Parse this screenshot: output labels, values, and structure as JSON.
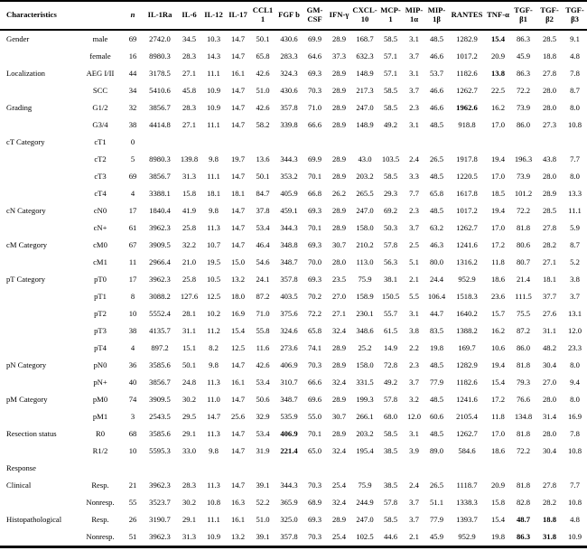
{
  "table": {
    "header": {
      "characteristics": "Characteristics",
      "n": "n",
      "cytokines": [
        "IL-1Ra",
        "IL-6",
        "IL-12",
        "IL-17",
        "CCL11",
        "FGF b",
        "GM-CSF",
        "IFN-γ",
        "CXCL-10",
        "MCP-1",
        "MIP-1α",
        "MIP-1β",
        "RANTES",
        "TNF-α",
        "TGF-β1",
        "TGF-β2",
        "TGF-β3"
      ]
    },
    "rows": [
      {
        "group": "Gender",
        "sub": "male",
        "n": "69",
        "values": [
          "2742.0",
          "34.5",
          "10.3",
          "14.7",
          "50.1",
          "430.6",
          "69.9",
          "28.9",
          "168.7",
          "58.5",
          "3.1",
          "48.5",
          "1282.9",
          "15.4",
          "86.3",
          "28.5",
          "9.1"
        ],
        "bold": [
          13
        ]
      },
      {
        "group": "",
        "sub": "female",
        "n": "16",
        "values": [
          "8980.3",
          "28.3",
          "14.3",
          "14.7",
          "65.8",
          "283.3",
          "64.6",
          "37.3",
          "632.3",
          "57.1",
          "3.7",
          "46.6",
          "1017.2",
          "20.9",
          "45.9",
          "18.8",
          "4.8"
        ],
        "bold": []
      },
      {
        "group": "Localization",
        "sub": "AEG I/II",
        "n": "44",
        "values": [
          "3178.5",
          "27.1",
          "11.1",
          "16.1",
          "42.6",
          "324.3",
          "69.3",
          "28.9",
          "148.9",
          "57.1",
          "3.1",
          "53.7",
          "1182.6",
          "13.8",
          "86.3",
          "27.8",
          "7.8"
        ],
        "bold": [
          13
        ]
      },
      {
        "group": "",
        "sub": "SCC",
        "n": "34",
        "values": [
          "5410.6",
          "45.8",
          "10.9",
          "14.7",
          "51.0",
          "430.6",
          "70.3",
          "28.9",
          "217.3",
          "58.5",
          "3.7",
          "46.6",
          "1262.7",
          "22.5",
          "72.2",
          "28.0",
          "8.7"
        ],
        "bold": []
      },
      {
        "group": "Grading",
        "sub": "G1/2",
        "n": "32",
        "values": [
          "3856.7",
          "28.3",
          "10.9",
          "14.7",
          "42.6",
          "357.8",
          "71.0",
          "28.9",
          "247.0",
          "58.5",
          "2.3",
          "46.6",
          "1962.6",
          "16.2",
          "73.9",
          "28.0",
          "8.0"
        ],
        "bold": [
          12
        ]
      },
      {
        "group": "",
        "sub": "G3/4",
        "n": "38",
        "values": [
          "4414.8",
          "27.1",
          "11.1",
          "14.7",
          "58.2",
          "339.8",
          "66.6",
          "28.9",
          "148.9",
          "49.2",
          "3.1",
          "48.5",
          "918.8",
          "17.0",
          "86.0",
          "27.3",
          "10.8"
        ],
        "bold": []
      },
      {
        "group": "cT Category",
        "sub": "cT1",
        "n": "0",
        "values": [
          "",
          "",
          "",
          "",
          "",
          "",
          "",
          "",
          "",
          "",
          "",
          "",
          "",
          "",
          "",
          "",
          ""
        ],
        "bold": []
      },
      {
        "group": "",
        "sub": "cT2",
        "n": "5",
        "values": [
          "8980.3",
          "139.8",
          "9.8",
          "19.7",
          "13.6",
          "344.3",
          "69.9",
          "28.9",
          "43.0",
          "103.5",
          "2.4",
          "26.5",
          "1917.8",
          "19.4",
          "196.3",
          "43.8",
          "7.7"
        ],
        "bold": []
      },
      {
        "group": "",
        "sub": "cT3",
        "n": "69",
        "values": [
          "3856.7",
          "31.3",
          "11.1",
          "14.7",
          "50.1",
          "353.2",
          "70.1",
          "28.9",
          "203.2",
          "58.5",
          "3.3",
          "48.5",
          "1220.5",
          "17.0",
          "73.9",
          "28.0",
          "8.0"
        ],
        "bold": []
      },
      {
        "group": "",
        "sub": "cT4",
        "n": "4",
        "values": [
          "3388.1",
          "15.8",
          "18.1",
          "18.1",
          "84.7",
          "405.9",
          "66.8",
          "26.2",
          "265.5",
          "29.3",
          "7.7",
          "65.8",
          "1617.8",
          "18.5",
          "101.2",
          "28.9",
          "13.3"
        ],
        "bold": []
      },
      {
        "group": "cN Category",
        "sub": "cN0",
        "n": "17",
        "values": [
          "1840.4",
          "41.9",
          "9.8",
          "14.7",
          "37.8",
          "459.1",
          "69.3",
          "28.9",
          "247.0",
          "69.2",
          "2.3",
          "48.5",
          "1017.2",
          "19.4",
          "72.2",
          "28.5",
          "11.1"
        ],
        "bold": []
      },
      {
        "group": "",
        "sub": "cN+",
        "n": "61",
        "values": [
          "3962.3",
          "25.8",
          "11.3",
          "14.7",
          "53.4",
          "344.3",
          "70.1",
          "28.9",
          "158.0",
          "50.3",
          "3.7",
          "63.2",
          "1262.7",
          "17.0",
          "81.8",
          "27.8",
          "5.9"
        ],
        "bold": []
      },
      {
        "group": "cM Category",
        "sub": "cM0",
        "n": "67",
        "values": [
          "3909.5",
          "32.2",
          "10.7",
          "14.7",
          "46.4",
          "348.8",
          "69.3",
          "30.7",
          "210.2",
          "57.8",
          "2.5",
          "46.3",
          "1241.6",
          "17.2",
          "80.6",
          "28.2",
          "8.7"
        ],
        "bold": []
      },
      {
        "group": "",
        "sub": "cM1",
        "n": "11",
        "values": [
          "2966.4",
          "21.0",
          "19.5",
          "15.0",
          "54.6",
          "348.7",
          "70.0",
          "28.0",
          "113.0",
          "56.3",
          "5.1",
          "80.0",
          "1316.2",
          "11.8",
          "80.7",
          "27.1",
          "5.2"
        ],
        "bold": []
      },
      {
        "group": "pT Category",
        "sub": "pT0",
        "n": "17",
        "values": [
          "3962.3",
          "25.8",
          "10.5",
          "13.2",
          "24.1",
          "357.8",
          "69.3",
          "23.5",
          "75.9",
          "38.1",
          "2.1",
          "24.4",
          "952.9",
          "18.6",
          "21.4",
          "18.1",
          "3.8"
        ],
        "bold": []
      },
      {
        "group": "",
        "sub": "pT1",
        "n": "8",
        "values": [
          "3088.2",
          "127.6",
          "12.5",
          "18.0",
          "87.2",
          "403.5",
          "70.2",
          "27.0",
          "158.9",
          "150.5",
          "5.5",
          "106.4",
          "1518.3",
          "23.6",
          "111.5",
          "37.7",
          "3.7"
        ],
        "bold": []
      },
      {
        "group": "",
        "sub": "pT2",
        "n": "10",
        "values": [
          "5552.4",
          "28.1",
          "10.2",
          "16.9",
          "71.0",
          "375.6",
          "72.2",
          "27.1",
          "230.1",
          "55.7",
          "3.1",
          "44.7",
          "1640.2",
          "15.7",
          "75.5",
          "27.6",
          "13.1"
        ],
        "bold": []
      },
      {
        "group": "",
        "sub": "pT3",
        "n": "38",
        "values": [
          "4135.7",
          "31.1",
          "11.2",
          "15.4",
          "55.8",
          "324.6",
          "65.8",
          "32.4",
          "348.6",
          "61.5",
          "3.8",
          "83.5",
          "1388.2",
          "16.2",
          "87.2",
          "31.1",
          "12.0"
        ],
        "bold": []
      },
      {
        "group": "",
        "sub": "pT4",
        "n": "4",
        "values": [
          "897.2",
          "15.1",
          "8.2",
          "12.5",
          "11.6",
          "273.6",
          "74.1",
          "28.9",
          "25.2",
          "14.9",
          "2.2",
          "19.8",
          "169.7",
          "10.6",
          "86.0",
          "48.2",
          "23.3"
        ],
        "bold": []
      },
      {
        "group": "pN Category",
        "sub": "pN0",
        "n": "36",
        "values": [
          "3585.6",
          "50.1",
          "9.8",
          "14.7",
          "42.6",
          "406.9",
          "70.3",
          "28.9",
          "158.0",
          "72.8",
          "2.3",
          "48.5",
          "1282.9",
          "19.4",
          "81.8",
          "30.4",
          "8.0"
        ],
        "bold": []
      },
      {
        "group": "",
        "sub": "pN+",
        "n": "40",
        "values": [
          "3856.7",
          "24.8",
          "11.3",
          "16.1",
          "53.4",
          "310.7",
          "66.6",
          "32.4",
          "331.5",
          "49.2",
          "3.7",
          "77.9",
          "1182.6",
          "15.4",
          "79.3",
          "27.0",
          "9.4"
        ],
        "bold": []
      },
      {
        "group": "pM Category",
        "sub": "pM0",
        "n": "74",
        "values": [
          "3909.5",
          "30.2",
          "11.0",
          "14.7",
          "50.6",
          "348.7",
          "69.6",
          "28.9",
          "199.3",
          "57.8",
          "3.2",
          "48.5",
          "1241.6",
          "17.2",
          "76.6",
          "28.0",
          "8.0"
        ],
        "bold": []
      },
      {
        "group": "",
        "sub": "pM1",
        "n": "3",
        "values": [
          "2543.5",
          "29.5",
          "14.7",
          "25.6",
          "32.9",
          "535.9",
          "55.0",
          "30.7",
          "266.1",
          "68.0",
          "12.0",
          "60.6",
          "2105.4",
          "11.8",
          "134.8",
          "31.4",
          "16.9"
        ],
        "bold": []
      },
      {
        "group": "Resection status",
        "sub": "R0",
        "n": "68",
        "values": [
          "3585.6",
          "29.1",
          "11.3",
          "14.7",
          "53.4",
          "406.9",
          "70.1",
          "28.9",
          "203.2",
          "58.5",
          "3.1",
          "48.5",
          "1262.7",
          "17.0",
          "81.8",
          "28.0",
          "7.8"
        ],
        "bold": [
          5
        ]
      },
      {
        "group": "",
        "sub": "R1/2",
        "n": "10",
        "values": [
          "5595.3",
          "33.0",
          "9.8",
          "14.7",
          "31.9",
          "221.4",
          "65.0",
          "32.4",
          "195.4",
          "38.5",
          "3.9",
          "89.0",
          "584.6",
          "18.6",
          "72.2",
          "30.4",
          "10.8"
        ],
        "bold": [
          5
        ]
      },
      {
        "group": "Response",
        "sub": "",
        "n": "",
        "values": [
          "",
          "",
          "",
          "",
          "",
          "",
          "",
          "",
          "",
          "",
          "",
          "",
          "",
          "",
          "",
          "",
          ""
        ],
        "bold": []
      },
      {
        "group": "Clinical",
        "sub": "Resp.",
        "n": "21",
        "values": [
          "3962.3",
          "28.3",
          "11.3",
          "14.7",
          "39.1",
          "344.3",
          "70.3",
          "25.4",
          "75.9",
          "38.5",
          "2.4",
          "26.5",
          "1118.7",
          "20.9",
          "81.8",
          "27.8",
          "7.7"
        ],
        "bold": []
      },
      {
        "group": "",
        "sub": "Nonresp.",
        "n": "55",
        "values": [
          "3523.7",
          "30.2",
          "10.8",
          "16.3",
          "52.2",
          "365.9",
          "68.9",
          "32.4",
          "244.9",
          "57.8",
          "3.7",
          "51.1",
          "1338.3",
          "15.8",
          "82.8",
          "28.2",
          "10.8"
        ],
        "bold": []
      },
      {
        "group": "Histopathological",
        "sub": "Resp.",
        "n": "26",
        "values": [
          "3190.7",
          "29.1",
          "11.1",
          "16.1",
          "51.0",
          "325.0",
          "69.3",
          "28.9",
          "247.0",
          "58.5",
          "3.7",
          "77.9",
          "1393.7",
          "15.4",
          "48.7",
          "18.8",
          "4.8"
        ],
        "bold": [
          14,
          15
        ]
      },
      {
        "group": "",
        "sub": "Nonresp.",
        "n": "51",
        "values": [
          "3962.3",
          "31.3",
          "10.9",
          "13.2",
          "39.1",
          "357.8",
          "70.3",
          "25.4",
          "102.5",
          "44.6",
          "2.1",
          "45.9",
          "952.9",
          "19.8",
          "86.3",
          "31.8",
          "10.9"
        ],
        "bold": [
          14,
          15
        ]
      }
    ]
  }
}
